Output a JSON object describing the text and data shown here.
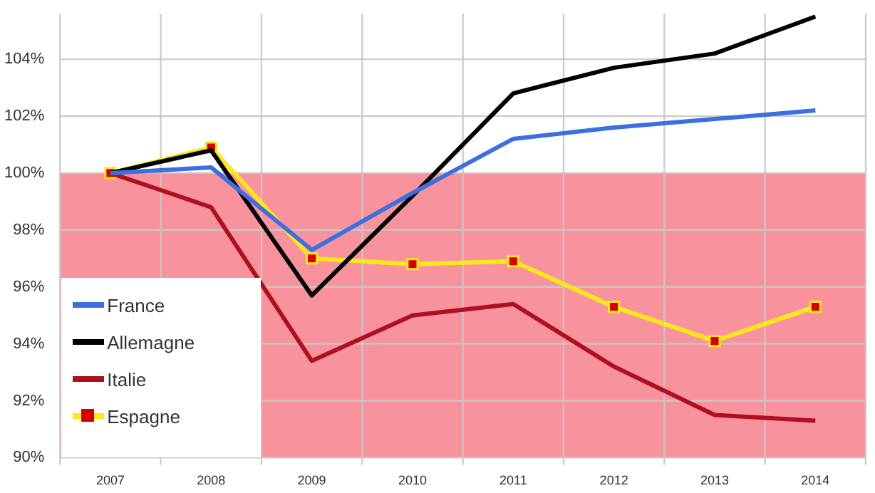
{
  "chart_data": {
    "type": "line",
    "categories": [
      "2007",
      "2008",
      "2009",
      "2010",
      "2011",
      "2012",
      "2013",
      "2014"
    ],
    "series": [
      {
        "name": "France",
        "color": "#3d6fe0",
        "values": [
          100,
          100.2,
          97.3,
          99.3,
          101.2,
          101.6,
          101.9,
          102.2
        ]
      },
      {
        "name": "Allemagne",
        "color": "#000000",
        "values": [
          100,
          100.8,
          95.7,
          99.2,
          102.8,
          103.7,
          104.2,
          105.5
        ]
      },
      {
        "name": "Italie",
        "color": "#b0101e",
        "values": [
          100,
          98.8,
          93.4,
          95.0,
          95.4,
          93.2,
          91.5,
          91.3
        ]
      },
      {
        "name": "Espagne",
        "color": "#ffe81a",
        "marker": "square",
        "values": [
          100,
          100.9,
          97.0,
          96.8,
          96.9,
          95.3,
          94.1,
          95.3
        ]
      }
    ],
    "ylim": [
      90,
      105.6
    ],
    "yticks": [
      {
        "value": 90,
        "label": "90%"
      },
      {
        "value": 92,
        "label": "92%"
      },
      {
        "value": 94,
        "label": "94%"
      },
      {
        "value": 96,
        "label": "96%"
      },
      {
        "value": 98,
        "label": "98%"
      },
      {
        "value": 100,
        "label": "100%"
      },
      {
        "value": 102,
        "label": "102%"
      },
      {
        "value": 104,
        "label": "104%"
      }
    ],
    "bands": [
      {
        "axis": "y",
        "from": 90,
        "to": 100,
        "color": "#f8939d"
      }
    ],
    "grid": true,
    "legend": "bottom left",
    "marker": "none",
    "line_style": "solid"
  }
}
